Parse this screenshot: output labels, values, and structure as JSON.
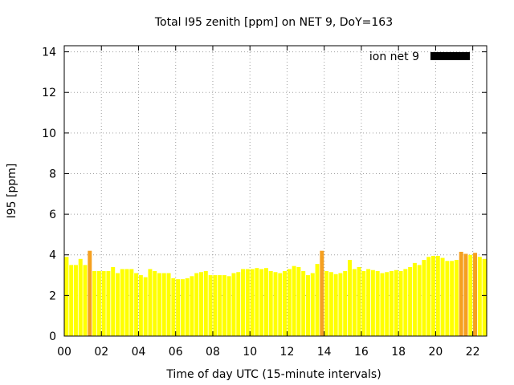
{
  "chart_data": {
    "type": "bar",
    "title": "Total I95 zenith [ppm] on NET 9, DoY=163",
    "xlabel": "Time of day UTC (15-minute intervals)",
    "ylabel": "I95 [ppm]",
    "xlim": [
      0,
      22.75
    ],
    "ylim": [
      0,
      14.3
    ],
    "x_ticks": [
      0,
      2,
      4,
      6,
      8,
      10,
      12,
      14,
      16,
      18,
      20,
      22
    ],
    "x_tick_labels": [
      "00",
      "02",
      "04",
      "06",
      "08",
      "10",
      "12",
      "14",
      "16",
      "18",
      "20",
      "22"
    ],
    "y_ticks": [
      0,
      2,
      4,
      6,
      8,
      10,
      12,
      14
    ],
    "y_tick_labels": [
      "0",
      "2",
      "4",
      "6",
      "8",
      "10",
      "12",
      "14"
    ],
    "grid": true,
    "legend_position": "top-right",
    "colors": {
      "normal": "#ffff00",
      "high": "#f5a020",
      "legend_swatch": "#000000"
    },
    "series": [
      {
        "name": "ion net 9",
        "x": [
          0.0,
          0.25,
          0.5,
          0.75,
          1.0,
          1.25,
          1.5,
          1.75,
          2.0,
          2.25,
          2.5,
          2.75,
          3.0,
          3.25,
          3.5,
          3.75,
          4.0,
          4.25,
          4.5,
          4.75,
          5.0,
          5.25,
          5.5,
          5.75,
          6.0,
          6.25,
          6.5,
          6.75,
          7.0,
          7.25,
          7.5,
          7.75,
          8.0,
          8.25,
          8.5,
          8.75,
          9.0,
          9.25,
          9.5,
          9.75,
          10.0,
          10.25,
          10.5,
          10.75,
          11.0,
          11.25,
          11.5,
          11.75,
          12.0,
          12.25,
          12.5,
          12.75,
          13.0,
          13.25,
          13.5,
          13.75,
          14.0,
          14.25,
          14.5,
          14.75,
          15.0,
          15.25,
          15.5,
          15.75,
          16.0,
          16.25,
          16.5,
          16.75,
          17.0,
          17.25,
          17.5,
          17.75,
          18.0,
          18.25,
          18.5,
          18.75,
          19.0,
          19.25,
          19.5,
          19.75,
          20.0,
          20.25,
          20.5,
          20.75,
          21.0,
          21.25,
          21.5,
          21.75,
          22.0,
          22.25,
          22.5
        ],
        "values": [
          3.9,
          3.5,
          3.5,
          3.8,
          3.5,
          4.2,
          3.2,
          3.2,
          3.2,
          3.2,
          3.4,
          3.1,
          3.3,
          3.3,
          3.3,
          3.1,
          3.0,
          2.9,
          3.3,
          3.2,
          3.1,
          3.1,
          3.1,
          2.85,
          2.8,
          2.8,
          2.85,
          2.95,
          3.1,
          3.15,
          3.2,
          3.0,
          3.0,
          3.0,
          3.0,
          2.95,
          3.1,
          3.15,
          3.3,
          3.3,
          3.3,
          3.35,
          3.3,
          3.35,
          3.2,
          3.15,
          3.1,
          3.2,
          3.3,
          3.45,
          3.4,
          3.2,
          3.0,
          3.1,
          3.55,
          4.2,
          3.2,
          3.15,
          3.05,
          3.1,
          3.2,
          3.75,
          3.3,
          3.4,
          3.2,
          3.3,
          3.25,
          3.2,
          3.1,
          3.15,
          3.2,
          3.25,
          3.2,
          3.3,
          3.4,
          3.6,
          3.5,
          3.75,
          3.9,
          3.95,
          3.95,
          3.85,
          3.7,
          3.7,
          3.75,
          4.15,
          4.05,
          4.0,
          4.1,
          3.9,
          3.8
        ],
        "high": [
          false,
          false,
          false,
          false,
          false,
          true,
          false,
          false,
          false,
          false,
          false,
          false,
          false,
          false,
          false,
          false,
          false,
          false,
          false,
          false,
          false,
          false,
          false,
          false,
          false,
          false,
          false,
          false,
          false,
          false,
          false,
          false,
          false,
          false,
          false,
          false,
          false,
          false,
          false,
          false,
          false,
          false,
          false,
          false,
          false,
          false,
          false,
          false,
          false,
          false,
          false,
          false,
          false,
          false,
          false,
          true,
          false,
          false,
          false,
          false,
          false,
          false,
          false,
          false,
          false,
          false,
          false,
          false,
          false,
          false,
          false,
          false,
          false,
          false,
          false,
          false,
          false,
          false,
          false,
          false,
          false,
          false,
          false,
          false,
          false,
          true,
          true,
          false,
          true,
          false,
          false
        ]
      }
    ]
  }
}
